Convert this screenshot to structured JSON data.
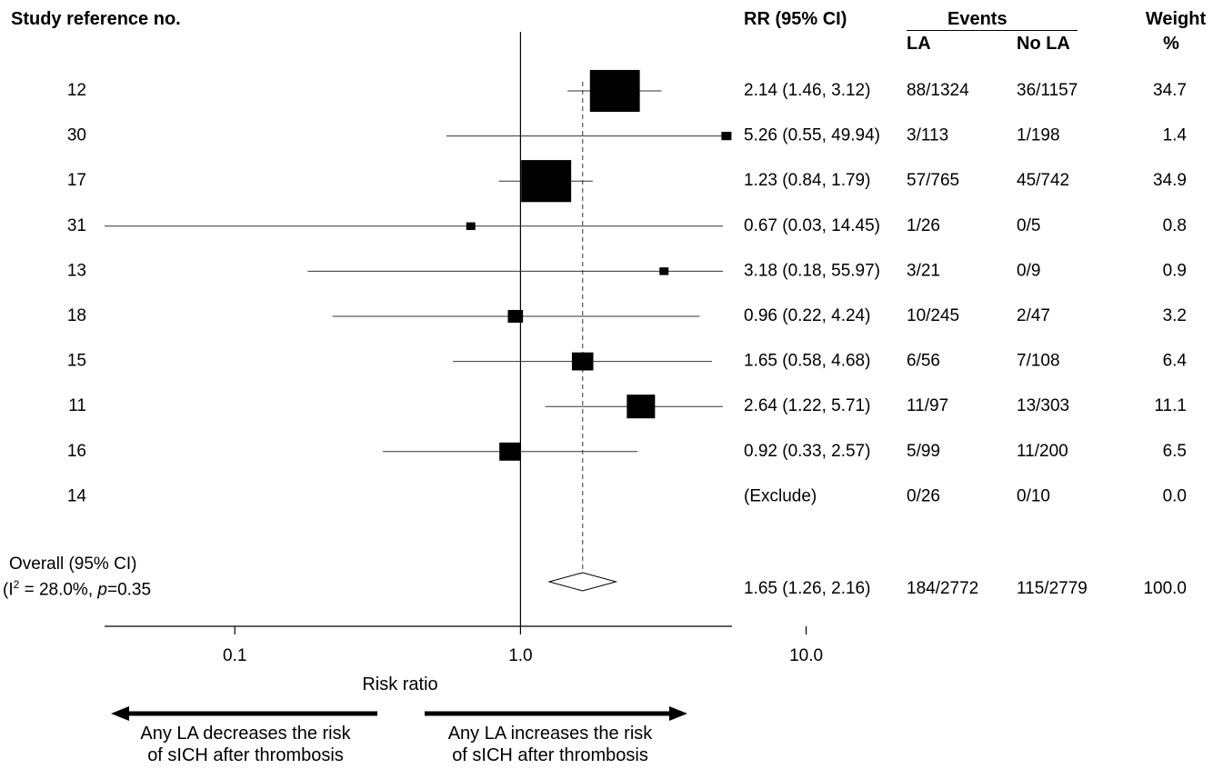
{
  "headers": {
    "study": "Study reference no.",
    "rr": "RR (95% CI)",
    "events": "Events",
    "la": "LA",
    "no_la": "No LA",
    "weight_line1": "Weight",
    "weight_line2": "%"
  },
  "overall": {
    "label_line1": "Overall (95% CI)",
    "i2_prefix": "(I",
    "i2_sup": "2",
    "i2_mid": " = 28.0%, ",
    "p_italic": "p",
    "p_value": "=0.35"
  },
  "arrows": {
    "left_line1": "Any LA decreases the risk",
    "left_line2": "of sICH after thrombosis",
    "right_line1": "Any LA increases the risk",
    "right_line2": "of sICH after thrombosis"
  },
  "chart_data": {
    "type": "forest",
    "xlabel": "Risk ratio",
    "xscale": "log",
    "xlim": [
      0.035,
      5.5
    ],
    "ticks": [
      0.1,
      1.0,
      10.0
    ],
    "tick_labels": [
      "0.1",
      "1.0",
      "10.0"
    ],
    "reference_line": 1.0,
    "pooled_line": 1.65,
    "studies": [
      {
        "label": "12",
        "rr": 2.14,
        "lo": 1.46,
        "hi": 3.12,
        "rr_text": "2.14 (1.46, 3.12)",
        "la": "88/1324",
        "nola": "36/1157",
        "weight": 34.7,
        "weight_text": "34.7"
      },
      {
        "label": "30",
        "rr": 5.26,
        "lo": 0.55,
        "hi": 49.94,
        "rr_text": "5.26 (0.55, 49.94)",
        "la": "3/113",
        "nola": "1/198",
        "weight": 1.4,
        "weight_text": "1.4"
      },
      {
        "label": "17",
        "rr": 1.23,
        "lo": 0.84,
        "hi": 1.79,
        "rr_text": "1.23 (0.84, 1.79)",
        "la": "57/765",
        "nola": "45/742",
        "weight": 34.9,
        "weight_text": "34.9"
      },
      {
        "label": "31",
        "rr": 0.67,
        "lo": 0.03,
        "hi": 14.45,
        "rr_text": "0.67 (0.03, 14.45)",
        "la": "1/26",
        "nola": "0/5",
        "weight": 0.8,
        "weight_text": "0.8"
      },
      {
        "label": "13",
        "rr": 3.18,
        "lo": 0.18,
        "hi": 55.97,
        "rr_text": "3.18 (0.18, 55.97)",
        "la": "3/21",
        "nola": "0/9",
        "weight": 0.9,
        "weight_text": "0.9"
      },
      {
        "label": "18",
        "rr": 0.96,
        "lo": 0.22,
        "hi": 4.24,
        "rr_text": "0.96 (0.22, 4.24)",
        "la": "10/245",
        "nola": "2/47",
        "weight": 3.2,
        "weight_text": "3.2"
      },
      {
        "label": "15",
        "rr": 1.65,
        "lo": 0.58,
        "hi": 4.68,
        "rr_text": "1.65 (0.58, 4.68)",
        "la": "6/56",
        "nola": "7/108",
        "weight": 6.4,
        "weight_text": "6.4"
      },
      {
        "label": "11",
        "rr": 2.64,
        "lo": 1.22,
        "hi": 5.71,
        "rr_text": "2.64 (1.22, 5.71)",
        "la": "11/97",
        "nola": "13/303",
        "weight": 11.1,
        "weight_text": "11.1"
      },
      {
        "label": "16",
        "rr": 0.92,
        "lo": 0.33,
        "hi": 2.57,
        "rr_text": "0.92 (0.33, 2.57)",
        "la": "5/99",
        "nola": "11/200",
        "weight": 6.5,
        "weight_text": "6.5"
      },
      {
        "label": "14",
        "rr": null,
        "lo": null,
        "hi": null,
        "rr_text": "(Exclude)",
        "la": "0/26",
        "nola": "0/10",
        "weight": 0.0,
        "weight_text": "0.0"
      }
    ],
    "pooled": {
      "rr": 1.65,
      "lo": 1.26,
      "hi": 2.16,
      "rr_text": "1.65 (1.26, 2.16)",
      "la": "184/2772",
      "nola": "115/2779",
      "weight_text": "100.0"
    }
  }
}
